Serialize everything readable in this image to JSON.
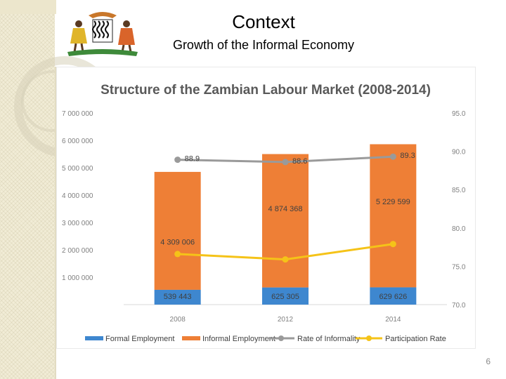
{
  "slide": {
    "title": "Context",
    "subtitle": "Growth of the Informal Economy",
    "page_number": "6"
  },
  "colors": {
    "formal": "#3e87cf",
    "informal": "#ee7f36",
    "informality": "#9a9a9a",
    "participation": "#f5c318",
    "chart_title": "#595959",
    "axis_text": "#7f7f7f"
  },
  "chart_data": {
    "type": "bar",
    "title": "Structure of the Zambian Labour Market (2008-2014)",
    "categories": [
      "2008",
      "2012",
      "2014"
    ],
    "stacked": true,
    "series": [
      {
        "name": "Formal Employment",
        "kind": "bar",
        "axis": "left",
        "values": [
          539443,
          625305,
          629626
        ],
        "labels": [
          "539 443",
          "625 305",
          "629 626"
        ]
      },
      {
        "name": "Informal Employment",
        "kind": "bar",
        "axis": "left",
        "values": [
          4309006,
          4874368,
          5229599
        ],
        "labels": [
          "4 309 006",
          "4 874 368",
          "5 229 599"
        ]
      },
      {
        "name": "Rate of Informality",
        "kind": "line",
        "axis": "right",
        "values": [
          88.9,
          88.6,
          89.3
        ],
        "labels": [
          "88.9",
          "88.6",
          "89.3"
        ]
      },
      {
        "name": "Participation Rate",
        "kind": "line",
        "axis": "right",
        "values": [
          76.6,
          75.9,
          77.9
        ]
      }
    ],
    "left_axis": {
      "ylim": [
        0,
        7000000
      ],
      "ticks": [
        "7 000 000",
        "6 000 000",
        "5 000 000",
        "4 000 000",
        "3 000 000",
        "2 000 000",
        "1 000 000"
      ]
    },
    "right_axis": {
      "ylim": [
        70,
        95
      ],
      "ticks": [
        "95.0",
        "90.0",
        "85.0",
        "80.0",
        "75.0",
        "70.0"
      ]
    },
    "legend_position": "bottom",
    "grid": false
  }
}
